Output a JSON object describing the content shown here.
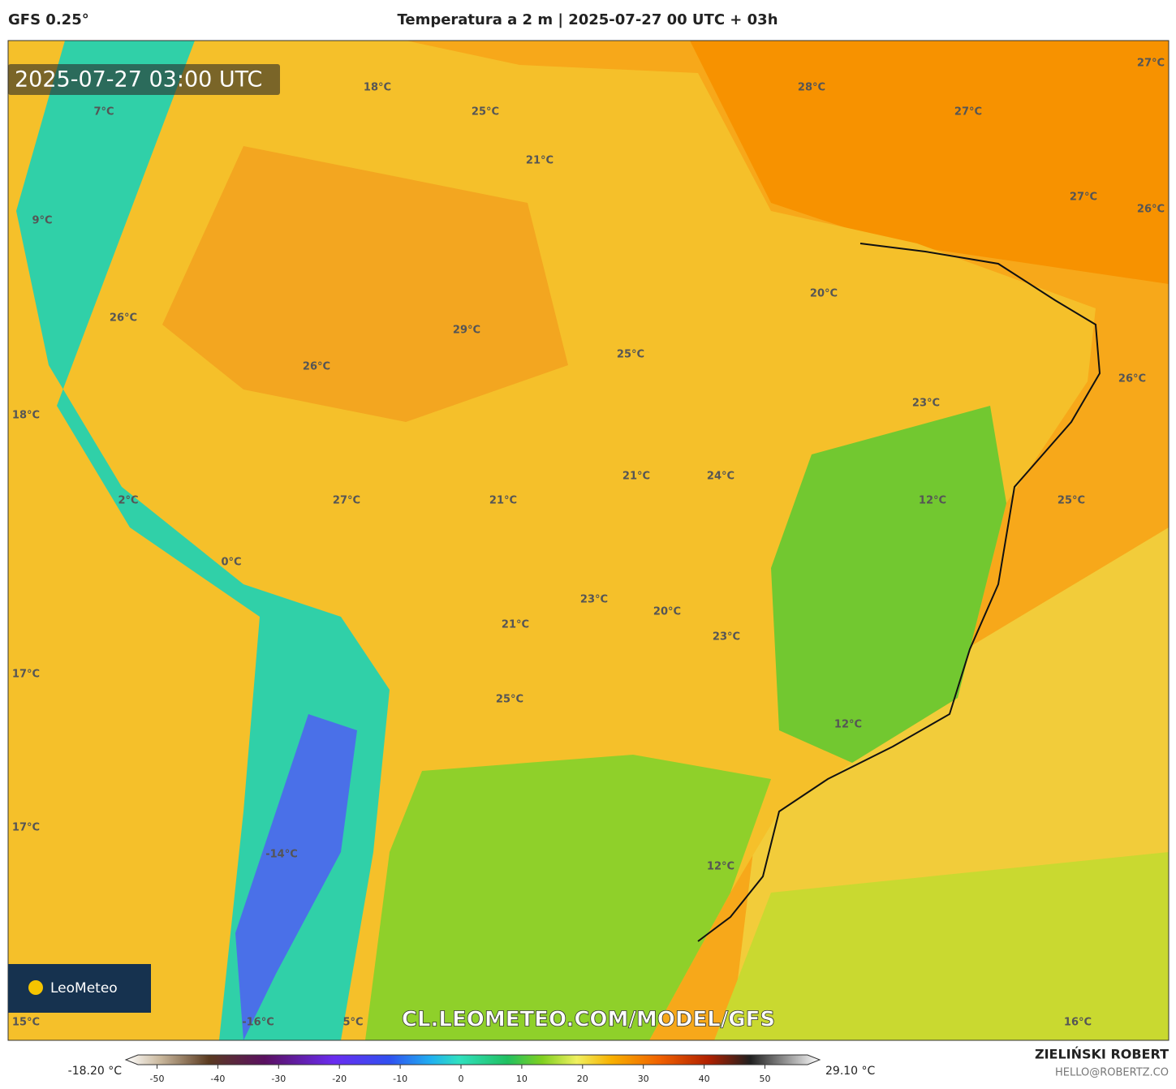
{
  "header": {
    "model": "GFS 0.25°",
    "title": "Temperatura a 2 m | 2025-07-27 00 UTC + 03h"
  },
  "timestamp": "2025-07-27 03:00 UTC",
  "watermark": "CL.LEOMETEO.COM/MODEL/GFS",
  "logo": "LeoMeteo",
  "map_labels": [
    "18°C",
    "25°C",
    "28°C",
    "27°C",
    "27°C",
    "7°C",
    "21°C",
    "27°C",
    "26°C",
    "9°C",
    "20°C",
    "26°C",
    "29°C",
    "25°C",
    "26°C",
    "26°C",
    "23°C",
    "18°C",
    "21°C",
    "24°C",
    "27°C",
    "21°C",
    "12°C",
    "25°C",
    "2°C",
    "0°C",
    "23°C",
    "20°C",
    "21°C",
    "23°C",
    "17°C",
    "25°C",
    "12°C",
    "17°C",
    "-14°C",
    "12°C",
    "15°C",
    "-16°C",
    "5°C",
    "16°C"
  ],
  "colorbar": {
    "min_label": "-18.20 °C",
    "max_label": "29.10 °C",
    "ticks": [
      -50,
      -40,
      -30,
      -20,
      -10,
      0,
      10,
      20,
      30,
      40,
      50
    ]
  },
  "footer": {
    "author": "ZIELIŃSKI ROBERT",
    "email": "HELLO@ROBERTZ.CO"
  }
}
